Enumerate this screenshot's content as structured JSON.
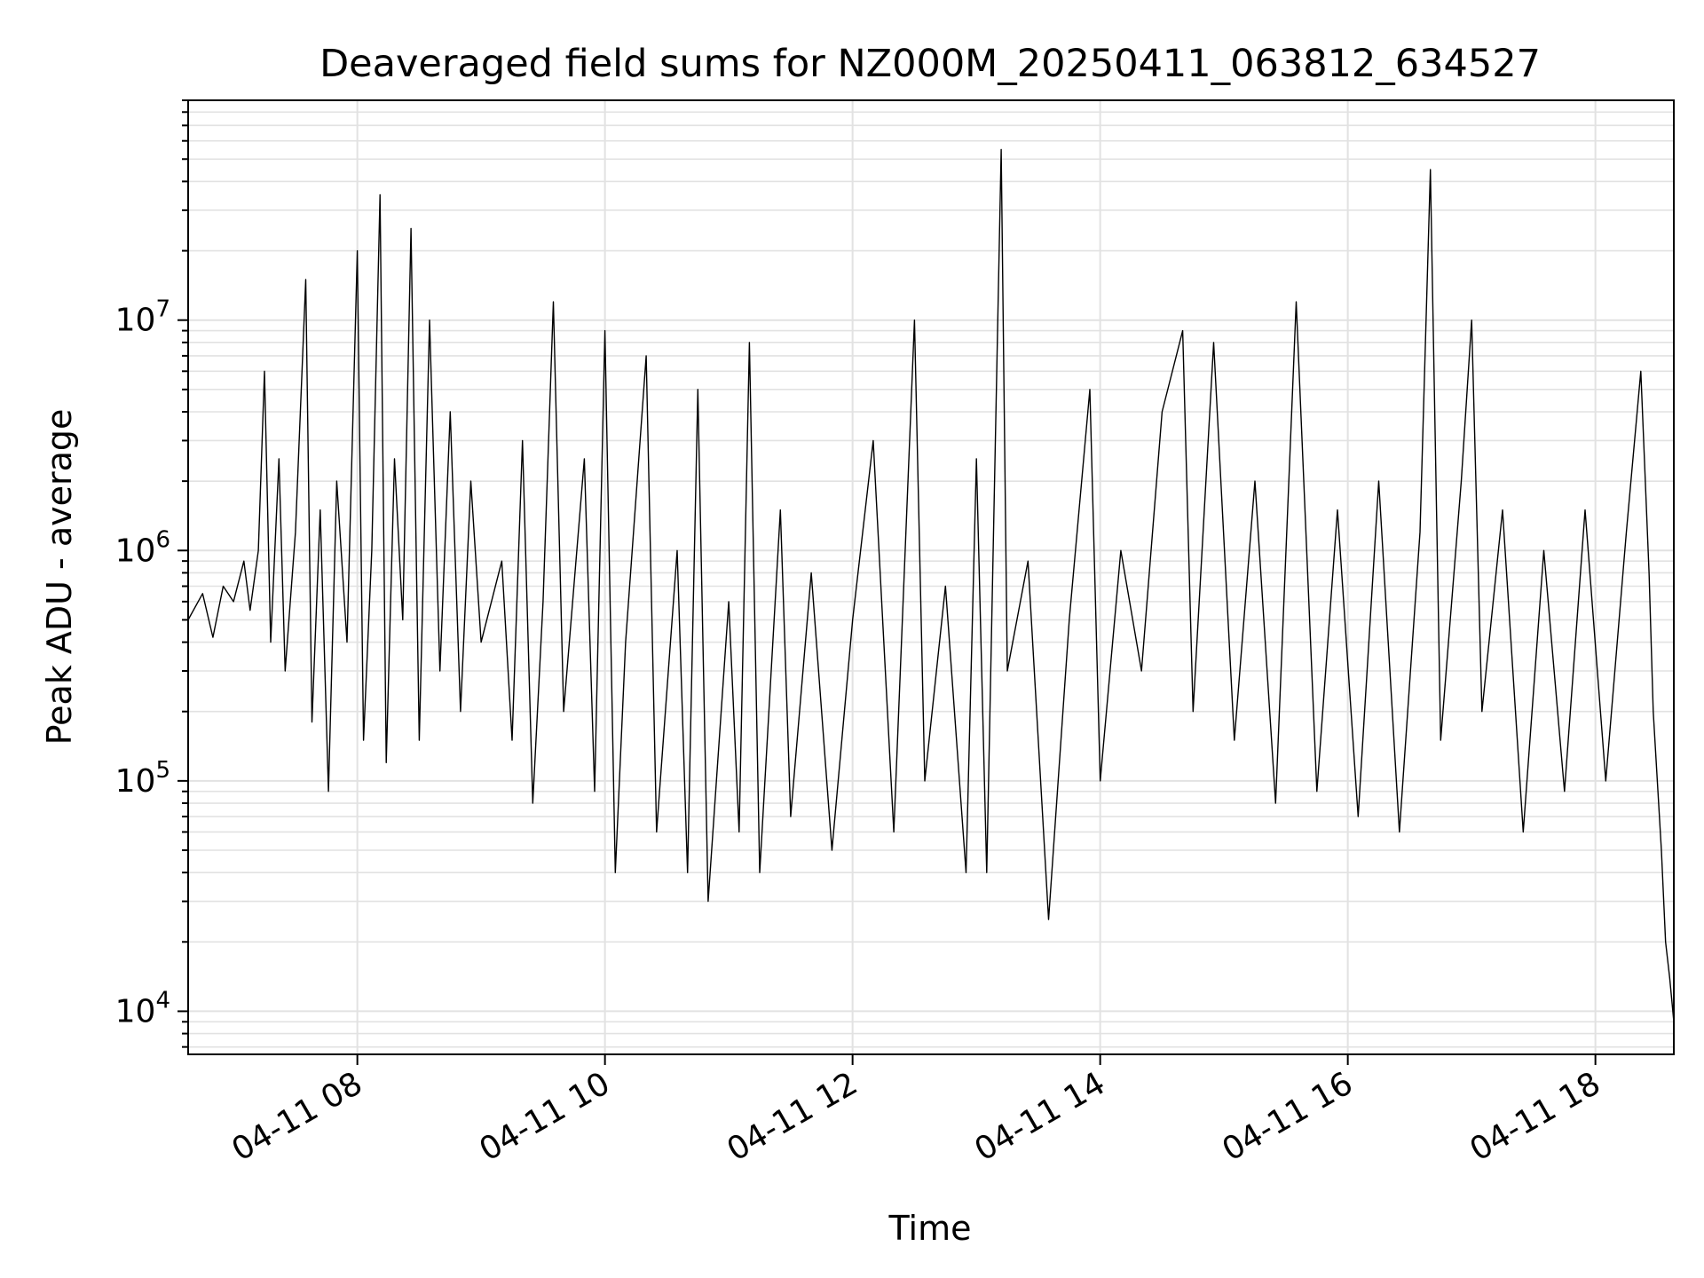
{
  "chart_data": {
    "type": "line",
    "title": "Deaveraged field sums for NZ000M_20250411_063812_634527",
    "xlabel": "Time",
    "ylabel": "Peak ADU - average",
    "yscale": "log",
    "grid": true,
    "ylim": [
      6500,
      90000000
    ],
    "xlim": [
      "2025-04-11 06:38",
      "2025-04-11 18:38"
    ],
    "x_ticks": [
      "04-11 08",
      "04-11 10",
      "04-11 12",
      "04-11 14",
      "04-11 16",
      "04-11 18"
    ],
    "y_ticks": [
      {
        "base": "10",
        "exp": "4"
      },
      {
        "base": "10",
        "exp": "5"
      },
      {
        "base": "10",
        "exp": "6"
      },
      {
        "base": "10",
        "exp": "7"
      }
    ],
    "series": [
      {
        "color": "#000000",
        "points": [
          [
            "04-11 06:38",
            500000
          ],
          [
            "04-11 06:45",
            650000
          ],
          [
            "04-11 06:50",
            420000
          ],
          [
            "04-11 06:55",
            700000
          ],
          [
            "04-11 07:00",
            600000
          ],
          [
            "04-11 07:05",
            900000
          ],
          [
            "04-11 07:08",
            550000
          ],
          [
            "04-11 07:12",
            1000000
          ],
          [
            "04-11 07:15",
            6000000
          ],
          [
            "04-11 07:18",
            400000
          ],
          [
            "04-11 07:22",
            2500000
          ],
          [
            "04-11 07:25",
            300000
          ],
          [
            "04-11 07:30",
            1200000
          ],
          [
            "04-11 07:35",
            15000000
          ],
          [
            "04-11 07:38",
            180000
          ],
          [
            "04-11 07:42",
            1500000
          ],
          [
            "04-11 07:46",
            90000
          ],
          [
            "04-11 07:50",
            2000000
          ],
          [
            "04-11 07:55",
            400000
          ],
          [
            "04-11 08:00",
            20000000
          ],
          [
            "04-11 08:03",
            150000
          ],
          [
            "04-11 08:07",
            1000000
          ],
          [
            "04-11 08:11",
            35000000
          ],
          [
            "04-11 08:14",
            120000
          ],
          [
            "04-11 08:18",
            2500000
          ],
          [
            "04-11 08:22",
            500000
          ],
          [
            "04-11 08:26",
            25000000
          ],
          [
            "04-11 08:30",
            150000
          ],
          [
            "04-11 08:35",
            10000000
          ],
          [
            "04-11 08:40",
            300000
          ],
          [
            "04-11 08:45",
            4000000
          ],
          [
            "04-11 08:50",
            200000
          ],
          [
            "04-11 08:55",
            2000000
          ],
          [
            "04-11 09:00",
            400000
          ],
          [
            "04-11 09:10",
            900000
          ],
          [
            "04-11 09:15",
            150000
          ],
          [
            "04-11 09:20",
            3000000
          ],
          [
            "04-11 09:25",
            80000
          ],
          [
            "04-11 09:30",
            600000
          ],
          [
            "04-11 09:35",
            12000000
          ],
          [
            "04-11 09:40",
            200000
          ],
          [
            "04-11 09:50",
            2500000
          ],
          [
            "04-11 09:55",
            90000
          ],
          [
            "04-11 10:00",
            9000000
          ],
          [
            "04-11 10:05",
            40000
          ],
          [
            "04-11 10:10",
            400000
          ],
          [
            "04-11 10:20",
            7000000
          ],
          [
            "04-11 10:25",
            60000
          ],
          [
            "04-11 10:35",
            1000000
          ],
          [
            "04-11 10:40",
            40000
          ],
          [
            "04-11 10:45",
            5000000
          ],
          [
            "04-11 10:50",
            30000
          ],
          [
            "04-11 11:00",
            600000
          ],
          [
            "04-11 11:05",
            60000
          ],
          [
            "04-11 11:10",
            8000000
          ],
          [
            "04-11 11:15",
            40000
          ],
          [
            "04-11 11:25",
            1500000
          ],
          [
            "04-11 11:30",
            70000
          ],
          [
            "04-11 11:40",
            800000
          ],
          [
            "04-11 11:50",
            50000
          ],
          [
            "04-11 12:00",
            500000
          ],
          [
            "04-11 12:10",
            3000000
          ],
          [
            "04-11 12:20",
            60000
          ],
          [
            "04-11 12:30",
            10000000
          ],
          [
            "04-11 12:35",
            100000
          ],
          [
            "04-11 12:45",
            700000
          ],
          [
            "04-11 12:55",
            40000
          ],
          [
            "04-11 13:00",
            2500000
          ],
          [
            "04-11 13:05",
            40000
          ],
          [
            "04-11 13:12",
            55000000
          ],
          [
            "04-11 13:15",
            300000
          ],
          [
            "04-11 13:25",
            900000
          ],
          [
            "04-11 13:35",
            25000
          ],
          [
            "04-11 13:45",
            500000
          ],
          [
            "04-11 13:55",
            5000000
          ],
          [
            "04-11 14:00",
            100000
          ],
          [
            "04-11 14:10",
            1000000
          ],
          [
            "04-11 14:20",
            300000
          ],
          [
            "04-11 14:30",
            4000000
          ],
          [
            "04-11 14:40",
            9000000
          ],
          [
            "04-11 14:45",
            200000
          ],
          [
            "04-11 14:55",
            8000000
          ],
          [
            "04-11 15:05",
            150000
          ],
          [
            "04-11 15:15",
            2000000
          ],
          [
            "04-11 15:25",
            80000
          ],
          [
            "04-11 15:35",
            12000000
          ],
          [
            "04-11 15:45",
            90000
          ],
          [
            "04-11 15:55",
            1500000
          ],
          [
            "04-11 16:05",
            70000
          ],
          [
            "04-11 16:15",
            2000000
          ],
          [
            "04-11 16:25",
            60000
          ],
          [
            "04-11 16:35",
            1200000
          ],
          [
            "04-11 16:40",
            45000000
          ],
          [
            "04-11 16:45",
            150000
          ],
          [
            "04-11 16:55",
            2000000
          ],
          [
            "04-11 17:00",
            10000000
          ],
          [
            "04-11 17:05",
            200000
          ],
          [
            "04-11 17:15",
            1500000
          ],
          [
            "04-11 17:25",
            60000
          ],
          [
            "04-11 17:35",
            1000000
          ],
          [
            "04-11 17:45",
            90000
          ],
          [
            "04-11 17:55",
            1500000
          ],
          [
            "04-11 18:05",
            100000
          ],
          [
            "04-11 18:15",
            1200000
          ],
          [
            "04-11 18:22",
            6000000
          ],
          [
            "04-11 18:26",
            800000
          ],
          [
            "04-11 18:28",
            200000
          ],
          [
            "04-11 18:30",
            100000
          ],
          [
            "04-11 18:32",
            50000
          ],
          [
            "04-11 18:34",
            20000
          ],
          [
            "04-11 18:36",
            14000
          ],
          [
            "04-11 18:38",
            9000
          ]
        ]
      }
    ]
  }
}
